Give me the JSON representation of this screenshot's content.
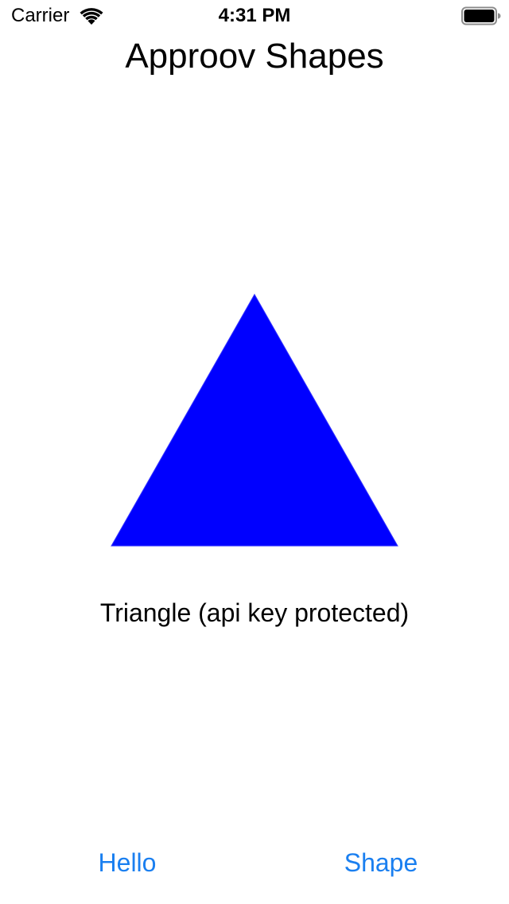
{
  "status_bar": {
    "carrier": "Carrier",
    "time": "4:31 PM",
    "wifi_icon": "wifi-icon",
    "battery_icon": "battery-icon"
  },
  "header": {
    "title": "Approov Shapes"
  },
  "shape": {
    "kind": "triangle",
    "icon": "triangle-shape",
    "color": "#0000ff",
    "label": "Triangle (api key protected)"
  },
  "buttons": {
    "hello_label": "Hello",
    "shape_label": "Shape",
    "color": "#1a7ff0"
  }
}
